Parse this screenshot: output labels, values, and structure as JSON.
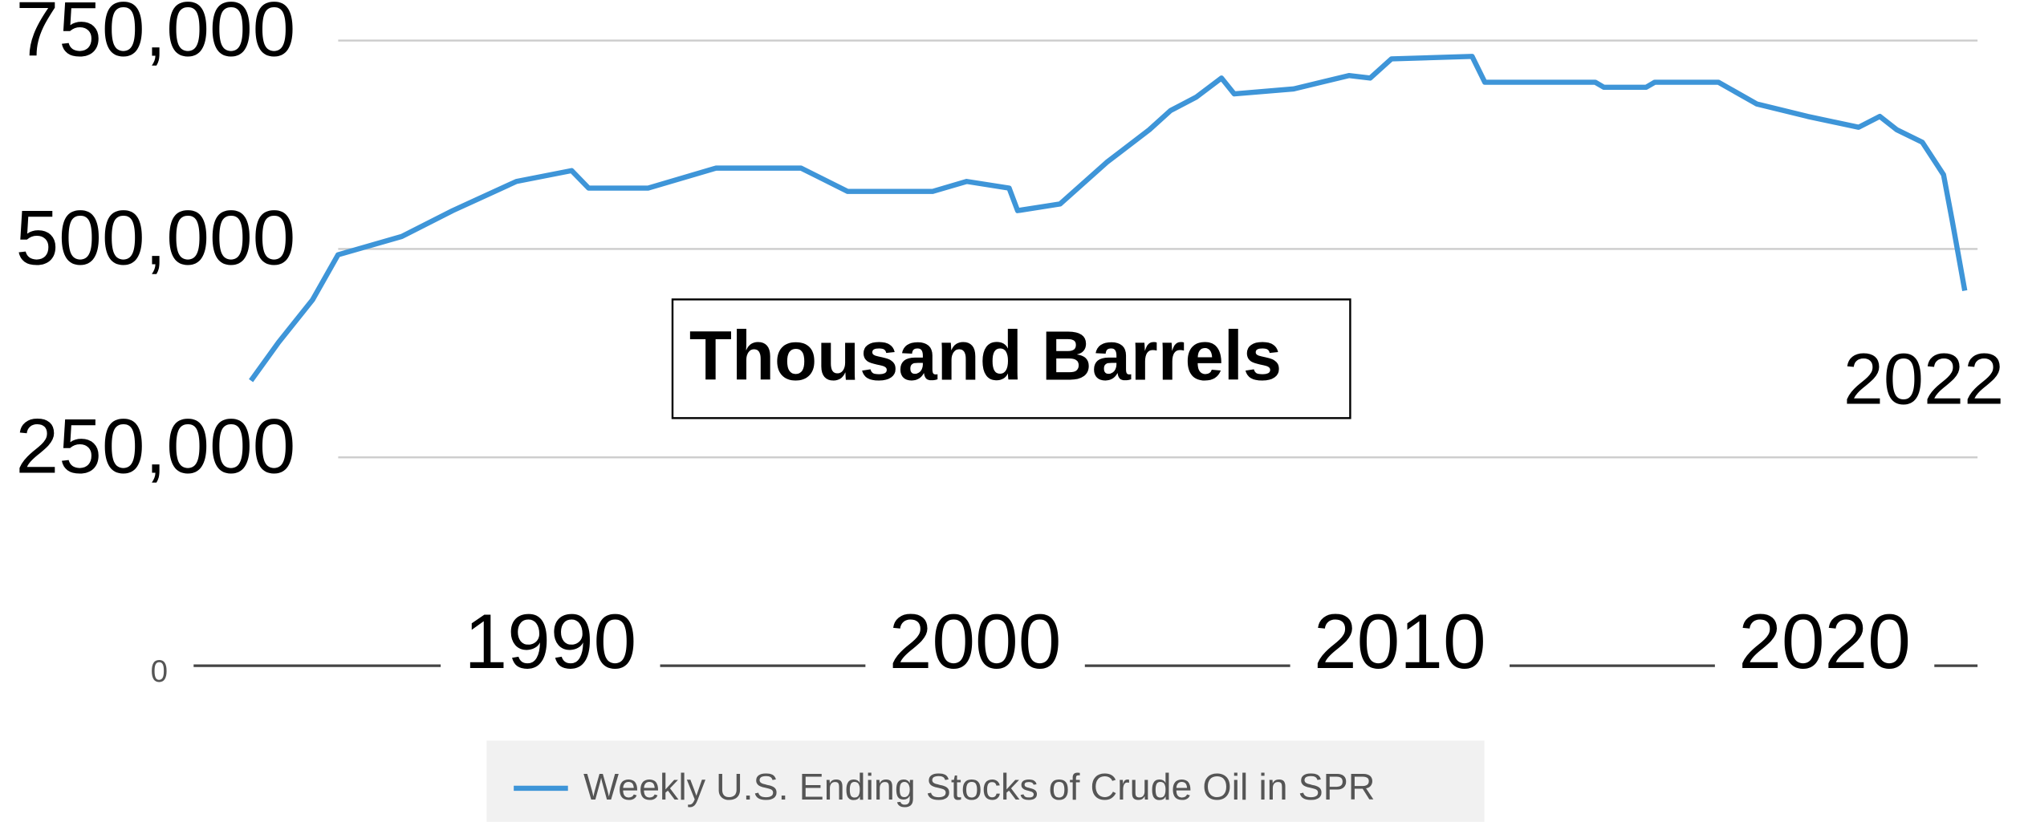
{
  "chart_data": {
    "type": "line",
    "annotations": [
      "Thousand Barrels",
      "2022"
    ],
    "x": [
      1982.95,
      1983.6,
      1984.4,
      1985.0,
      1986.5,
      1987.7,
      1989.2,
      1990.5,
      1990.9,
      1992.3,
      1993.9,
      1995.9,
      1997.0,
      1999.0,
      1999.8,
      2000.8,
      2001.0,
      2002.0,
      2003.1,
      2004.1,
      2004.6,
      2005.2,
      2005.8,
      2006.1,
      2007.5,
      2008.8,
      2009.3,
      2009.8,
      2011.7,
      2012.0,
      2014.6,
      2014.8,
      2015.8,
      2016.0,
      2017.5,
      2018.4,
      2019.6,
      2020.8,
      2021.3,
      2021.7,
      2022.3,
      2022.8,
      2023.0,
      2023.3
    ],
    "series": [
      {
        "name": "Weekly U.S. Ending Stocks of Crude Oil in SPR",
        "color": "#3e95d8",
        "values": [
          342000,
          388000,
          439000,
          493000,
          515000,
          546000,
          581000,
          594000,
          573000,
          573000,
          597000,
          597000,
          569000,
          569000,
          581000,
          573000,
          546000,
          554000,
          604000,
          643000,
          666000,
          682000,
          705000,
          686000,
          692000,
          708000,
          705000,
          728000,
          731000,
          700000,
          700000,
          694000,
          694000,
          700000,
          700000,
          674000,
          659000,
          646000,
          659000,
          643000,
          628000,
          589000,
          535000,
          450000
        ]
      }
    ],
    "xlim": [
      1981.6,
      2023.6
    ],
    "xticks": [
      1990,
      2000,
      2010,
      2020
    ],
    "ylim": [
      0,
      800000
    ],
    "yticks": [
      0,
      {
        "value": 250000,
        "label": "250,000"
      },
      {
        "value": 500000,
        "label": "500,000"
      },
      {
        "value": 750000,
        "label": "750,000"
      }
    ],
    "grid": true,
    "legend": "bottom"
  }
}
